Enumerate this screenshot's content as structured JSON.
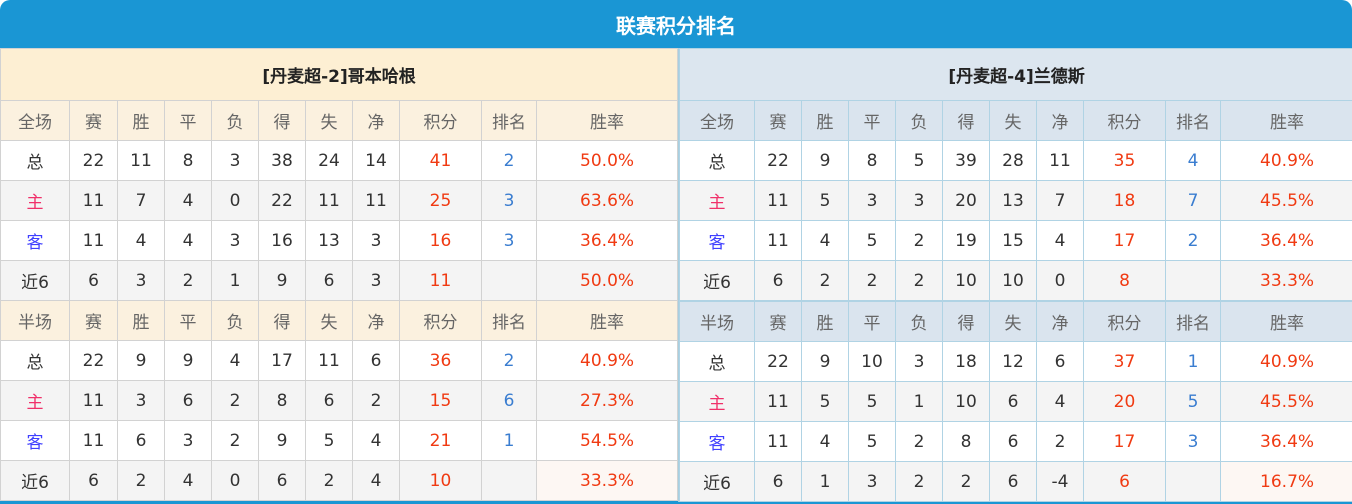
{
  "title": "联赛积分排名",
  "colors": {
    "title_bar": "#1a96d4",
    "points": "#f03a12",
    "rank": "#3a7dd0",
    "home_label": "#f0306a",
    "away_label": "#4040ff"
  },
  "columns": [
    "赛",
    "胜",
    "平",
    "负",
    "得",
    "失",
    "净",
    "积分",
    "排名",
    "胜率"
  ],
  "teams": [
    {
      "name": "[丹麦超-2]哥本哈根",
      "sections": [
        {
          "label": "全场",
          "rows": [
            [
              "总",
              "22",
              "11",
              "8",
              "3",
              "38",
              "24",
              "14",
              "41",
              "2",
              "50.0%"
            ],
            [
              "主",
              "11",
              "7",
              "4",
              "0",
              "22",
              "11",
              "11",
              "25",
              "3",
              "63.6%"
            ],
            [
              "客",
              "11",
              "4",
              "4",
              "3",
              "16",
              "13",
              "3",
              "16",
              "3",
              "36.4%"
            ],
            [
              "近6",
              "6",
              "3",
              "2",
              "1",
              "9",
              "6",
              "3",
              "11",
              "",
              "50.0%"
            ]
          ]
        },
        {
          "label": "半场",
          "rows": [
            [
              "总",
              "22",
              "9",
              "9",
              "4",
              "17",
              "11",
              "6",
              "36",
              "2",
              "40.9%"
            ],
            [
              "主",
              "11",
              "3",
              "6",
              "2",
              "8",
              "6",
              "2",
              "15",
              "6",
              "27.3%"
            ],
            [
              "客",
              "11",
              "6",
              "3",
              "2",
              "9",
              "5",
              "4",
              "21",
              "1",
              "54.5%"
            ],
            [
              "近6",
              "6",
              "2",
              "4",
              "0",
              "6",
              "2",
              "4",
              "10",
              "",
              "33.3%"
            ]
          ]
        }
      ]
    },
    {
      "name": "[丹麦超-4]兰德斯",
      "sections": [
        {
          "label": "全场",
          "rows": [
            [
              "总",
              "22",
              "9",
              "8",
              "5",
              "39",
              "28",
              "11",
              "35",
              "4",
              "40.9%"
            ],
            [
              "主",
              "11",
              "5",
              "3",
              "3",
              "20",
              "13",
              "7",
              "18",
              "7",
              "45.5%"
            ],
            [
              "客",
              "11",
              "4",
              "5",
              "2",
              "19",
              "15",
              "4",
              "17",
              "2",
              "36.4%"
            ],
            [
              "近6",
              "6",
              "2",
              "2",
              "2",
              "10",
              "10",
              "0",
              "8",
              "",
              "33.3%"
            ]
          ]
        },
        {
          "label": "半场",
          "rows": [
            [
              "总",
              "22",
              "9",
              "10",
              "3",
              "18",
              "12",
              "6",
              "37",
              "1",
              "40.9%"
            ],
            [
              "主",
              "11",
              "5",
              "5",
              "1",
              "10",
              "6",
              "4",
              "20",
              "5",
              "45.5%"
            ],
            [
              "客",
              "11",
              "4",
              "5",
              "2",
              "8",
              "6",
              "2",
              "17",
              "3",
              "36.4%"
            ],
            [
              "近6",
              "6",
              "1",
              "3",
              "2",
              "2",
              "6",
              "-4",
              "6",
              "",
              "16.7%"
            ]
          ]
        }
      ]
    }
  ]
}
